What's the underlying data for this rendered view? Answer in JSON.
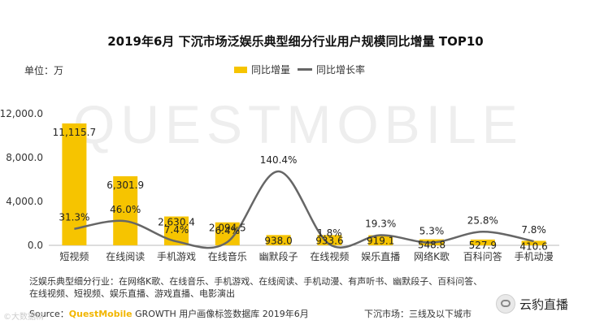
{
  "chart_data": {
    "type": "bar",
    "title": "2019年6月 下沉市场泛娱乐典型细分行业用户规模同比增量 TOP10",
    "unit_label": "单位：万",
    "categories": [
      "短视频",
      "在线阅读",
      "手机游戏",
      "在线音乐",
      "幽默段子",
      "在线视频",
      "娱乐直播",
      "网络K歌",
      "百科问答",
      "手机动漫"
    ],
    "series": [
      {
        "name": "同比增量",
        "kind": "bar",
        "color": "#f6c400",
        "values": [
          11115.7,
          6301.9,
          2630.4,
          2094.5,
          938.0,
          933.6,
          919.1,
          548.8,
          527.9,
          410.6
        ],
        "value_labels": [
          "11,115.7",
          "6,301.9",
          "2,630.4",
          "2,094.5",
          "938.0",
          "933.6",
          "919.1",
          "548.8",
          "527.9",
          "410.6"
        ]
      },
      {
        "name": "同比增长率",
        "kind": "line",
        "color": "#666666",
        "values": [
          31.3,
          46.0,
          7.4,
          6.4,
          140.4,
          1.8,
          19.3,
          5.3,
          25.8,
          7.8
        ],
        "value_labels": [
          "31.3%",
          "46.0%",
          "7.4%",
          "6.4%",
          "140.4%",
          "1.8%",
          "19.3%",
          "5.3%",
          "25.8%",
          "7.8%"
        ]
      }
    ],
    "y_ticks": [
      0,
      4000,
      8000,
      12000
    ],
    "y_tick_labels": [
      "0.0",
      "4,000.0",
      "8,000.0",
      "12,000.0"
    ],
    "ylim": [
      0,
      12000
    ],
    "y2lim": [
      0,
      250
    ],
    "legend_position": "top"
  },
  "watermark": "QUESTMOBILE",
  "note_lines": [
    "泛娱乐典型细分行业：在网络K歌、在线音乐、手机游戏、在线阅读、手机动漫、有声听书、幽默段子、百科问答、",
    "在线视频、短视频、娱乐直播、游戏直播、电影演出"
  ],
  "source": {
    "prefix": "Source：",
    "brand": "QuestMobile",
    "rest": " GROWTH 用户画像标签数据库  2019年6月"
  },
  "market_note": "下沉市场：三线及以下城市",
  "corner_text": "©大数据精",
  "brand_badge": "云豹直播"
}
